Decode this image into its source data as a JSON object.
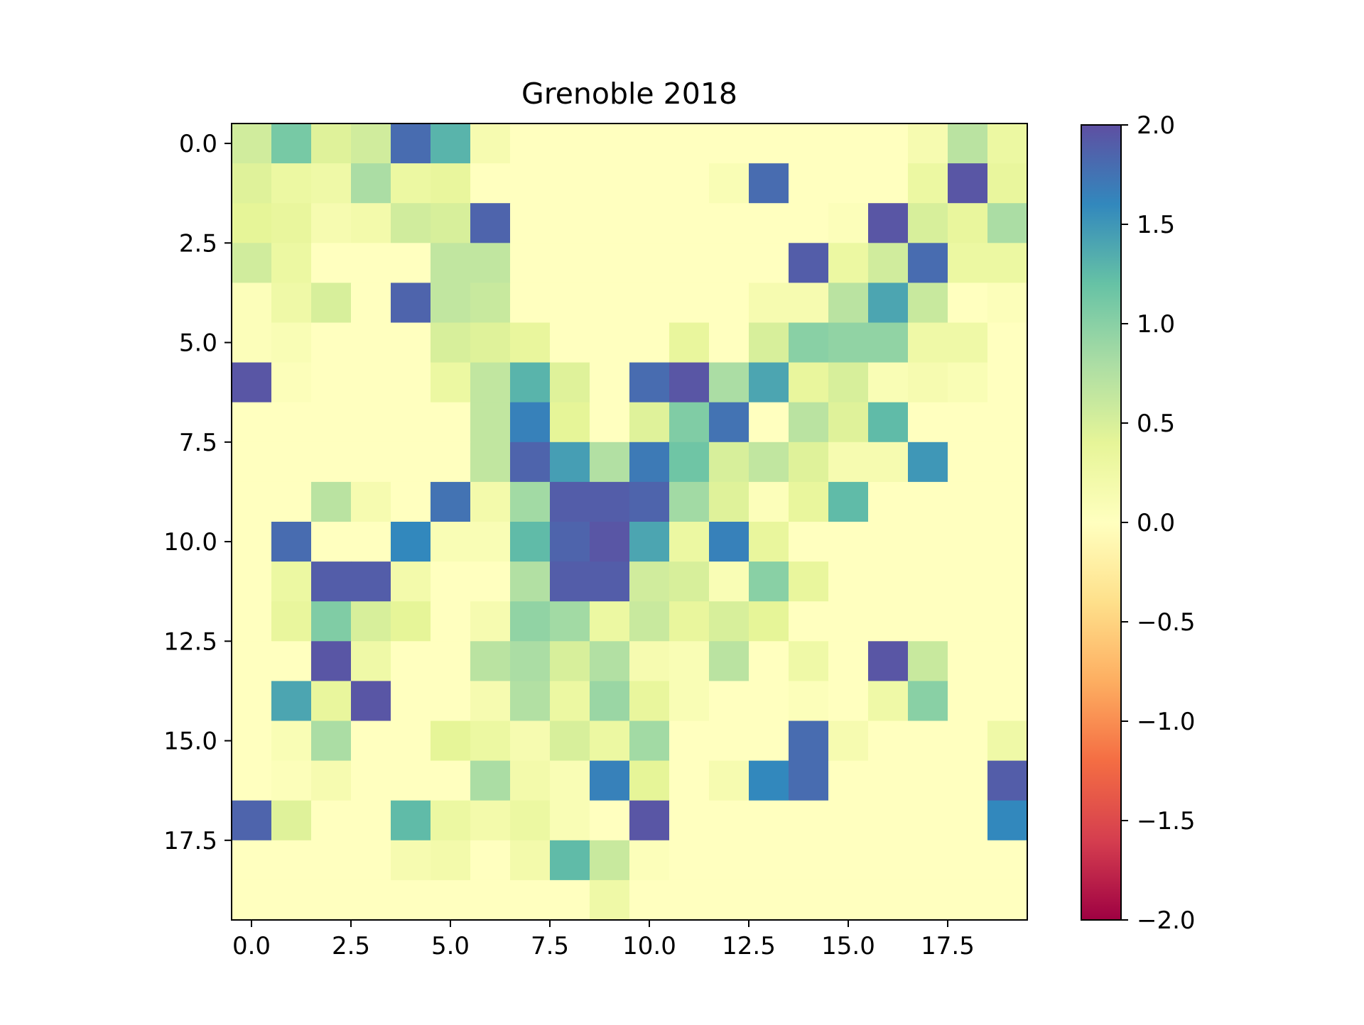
{
  "chart_data": {
    "type": "heatmap",
    "title": "Grenoble 2018",
    "xlabel": "",
    "ylabel": "",
    "colormap": "Spectral",
    "vmin": -2.0,
    "vmax": 2.0,
    "x_ticks": [
      "0.0",
      "2.5",
      "5.0",
      "7.5",
      "10.0",
      "12.5",
      "15.0",
      "17.5"
    ],
    "y_ticks": [
      "0.0",
      "2.5",
      "5.0",
      "7.5",
      "10.0",
      "12.5",
      "15.0",
      "17.5"
    ],
    "colorbar_ticks": [
      "2.0",
      "1.5",
      "1.0",
      "0.5",
      "0.0",
      "−0.5",
      "−1.0",
      "−1.5",
      "−2.0"
    ],
    "legend": "colorbar-right",
    "grid": false,
    "values": [
      [
        0.55,
        1.1,
        0.45,
        0.55,
        1.8,
        1.3,
        0.15,
        0,
        0,
        0,
        0,
        0,
        0,
        0,
        0,
        0,
        0,
        0.15,
        0.7,
        0.3
      ],
      [
        0.45,
        0.3,
        0.25,
        0.8,
        0.3,
        0.35,
        0,
        0,
        0,
        0,
        0,
        0,
        0.1,
        1.8,
        0,
        0,
        0,
        0.3,
        1.95,
        0.35
      ],
      [
        0.4,
        0.35,
        0.15,
        0.2,
        0.55,
        0.5,
        1.85,
        0,
        0,
        0,
        0,
        0,
        0,
        0,
        0,
        0.05,
        1.95,
        0.5,
        0.35,
        0.8
      ],
      [
        0.55,
        0.3,
        0,
        0,
        0,
        0.65,
        0.65,
        0,
        0,
        0,
        0,
        0,
        0,
        0,
        1.9,
        0.3,
        0.55,
        1.8,
        0.3,
        0.3
      ],
      [
        0.05,
        0.25,
        0.5,
        0,
        1.85,
        0.65,
        0.6,
        0,
        0,
        0,
        0,
        0,
        0,
        0.15,
        0.15,
        0.7,
        1.4,
        0.6,
        0,
        0.05
      ],
      [
        0.05,
        0.1,
        0,
        0,
        0,
        0.5,
        0.45,
        0.35,
        0,
        0,
        0,
        0.35,
        0,
        0.5,
        1.0,
        0.95,
        0.95,
        0.25,
        0.25,
        0
      ],
      [
        1.95,
        0.05,
        0,
        0,
        0,
        0.3,
        0.65,
        1.3,
        0.45,
        0,
        1.8,
        1.95,
        0.8,
        1.4,
        0.35,
        0.5,
        0.1,
        0.15,
        0.1,
        0
      ],
      [
        0,
        0,
        0,
        0,
        0,
        0,
        0.65,
        1.65,
        0.4,
        0,
        0.45,
        1.05,
        1.75,
        0,
        0.7,
        0.45,
        1.25,
        0,
        0,
        0
      ],
      [
        0,
        0,
        0,
        0,
        0,
        0,
        0.65,
        1.85,
        1.45,
        0.75,
        1.7,
        1.15,
        0.5,
        0.65,
        0.45,
        0.15,
        0.15,
        1.5,
        0,
        0
      ],
      [
        0,
        0,
        0.7,
        0.15,
        0,
        1.75,
        0.2,
        0.85,
        1.9,
        1.9,
        1.85,
        0.85,
        0.45,
        0.05,
        0.35,
        1.25,
        0,
        0,
        0,
        0
      ],
      [
        0,
        1.8,
        0,
        0,
        1.6,
        0.1,
        0.1,
        1.25,
        1.85,
        1.95,
        1.4,
        0.3,
        1.65,
        0.35,
        0,
        0,
        0,
        0,
        0,
        0
      ],
      [
        0,
        0.3,
        1.9,
        1.9,
        0.2,
        0,
        0,
        0.75,
        1.9,
        1.9,
        0.55,
        0.5,
        0.1,
        1.0,
        0.35,
        0,
        0,
        0,
        0,
        0
      ],
      [
        0,
        0.35,
        1.05,
        0.5,
        0.4,
        0,
        0.15,
        0.95,
        0.85,
        0.3,
        0.6,
        0.35,
        0.5,
        0.4,
        0,
        0,
        0,
        0,
        0,
        0
      ],
      [
        0,
        0,
        1.95,
        0.25,
        0,
        0,
        0.7,
        0.8,
        0.5,
        0.75,
        0.15,
        0.1,
        0.7,
        0,
        0.25,
        0,
        1.95,
        0.6,
        0,
        0
      ],
      [
        0,
        1.4,
        0.35,
        1.95,
        0,
        0,
        0.15,
        0.75,
        0.3,
        0.9,
        0.35,
        0.1,
        0,
        0,
        0.05,
        0,
        0.25,
        1.0,
        0,
        0
      ],
      [
        0,
        0.1,
        0.8,
        0,
        0,
        0.4,
        0.3,
        0.15,
        0.5,
        0.3,
        0.85,
        0,
        0,
        0,
        1.8,
        0.15,
        0,
        0,
        0,
        0.25
      ],
      [
        0,
        0.05,
        0.15,
        0,
        0,
        0,
        0.8,
        0.2,
        0.1,
        1.65,
        0.4,
        0,
        0.15,
        1.6,
        1.8,
        0,
        0,
        0,
        0,
        1.9
      ],
      [
        1.85,
        0.45,
        0,
        0,
        1.25,
        0.3,
        0.2,
        0.3,
        0.1,
        0,
        1.95,
        0,
        0,
        0,
        0,
        0,
        0,
        0,
        0,
        1.6
      ],
      [
        0,
        0,
        0,
        0,
        0.15,
        0.2,
        0,
        0.2,
        1.25,
        0.6,
        0.05,
        0,
        0,
        0,
        0,
        0,
        0,
        0,
        0,
        0
      ],
      [
        0,
        0,
        0,
        0,
        0,
        0,
        0,
        0,
        0,
        0.25,
        0,
        0,
        0,
        0,
        0,
        0,
        0,
        0,
        0,
        0
      ]
    ]
  }
}
